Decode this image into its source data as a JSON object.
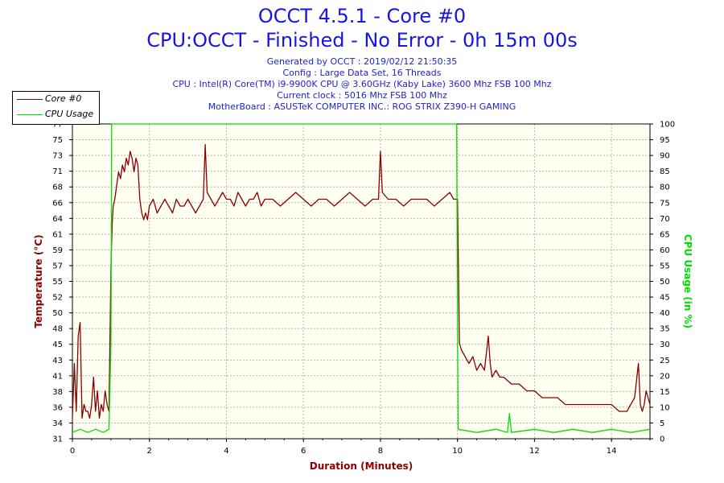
{
  "title": "OCCT 4.5.1 - Core #0",
  "subtitle": "CPU:OCCT - Finished - No Error - 0h 15m 00s",
  "info_lines": [
    "Generated by OCCT : 2019/02/12 21:50:35",
    "Config : Large Data Set, 16 Threads",
    "CPU : Intel(R) Core(TM) i9-9900K CPU @ 3.60GHz (Kaby Lake) 3600 Mhz FSB 100 Mhz",
    "Current clock : 5016 Mhz FSB 100 Mhz",
    "MotherBoard : ASUSTeK COMPUTER INC.: ROG STRIX Z390-H GAMING"
  ],
  "colors": {
    "title": "#1a14e0",
    "info": "#2323c8",
    "temperature": "#8b0000",
    "cpu_usage": "#00e000",
    "plot_background": "#fffff2",
    "grid": "#b4b4b4"
  },
  "chart_data": {
    "type": "line",
    "xlabel": "Duration (Minutes)",
    "ylabel": "Temperature (°C)",
    "y2label": "CPU Usage (in %)",
    "xlim": [
      0,
      15
    ],
    "ylim": [
      31,
      77
    ],
    "y2lim": [
      0,
      100
    ],
    "x_ticks": [
      "0",
      "2",
      "4",
      "6",
      "8",
      "10",
      "12",
      "14"
    ],
    "y_ticks": [
      "31",
      "34",
      "36",
      "38",
      "41",
      "43",
      "45",
      "48",
      "50",
      "52",
      "55",
      "57",
      "59",
      "61",
      "64",
      "66",
      "68",
      "71",
      "73",
      "75",
      "77"
    ],
    "y2_ticks": [
      "0",
      "5",
      "10",
      "15",
      "20",
      "25",
      "30",
      "35",
      "40",
      "45",
      "50",
      "55",
      "60",
      "65",
      "70",
      "75",
      "80",
      "85",
      "90",
      "95",
      "100"
    ],
    "grid": true,
    "legend": "top-left",
    "series": [
      {
        "name": "Core #0",
        "axis": "left",
        "x": [
          0,
          0.05,
          0.1,
          0.15,
          0.2,
          0.25,
          0.3,
          0.35,
          0.4,
          0.45,
          0.5,
          0.55,
          0.6,
          0.65,
          0.7,
          0.75,
          0.8,
          0.85,
          0.9,
          0.95,
          1.0,
          1.03,
          1.06,
          1.1,
          1.15,
          1.2,
          1.25,
          1.3,
          1.35,
          1.4,
          1.45,
          1.5,
          1.55,
          1.6,
          1.65,
          1.7,
          1.75,
          1.8,
          1.85,
          1.9,
          1.95,
          2.0,
          2.1,
          2.2,
          2.3,
          2.4,
          2.5,
          2.6,
          2.7,
          2.8,
          2.9,
          3.0,
          3.1,
          3.2,
          3.3,
          3.4,
          3.45,
          3.5,
          3.6,
          3.7,
          3.8,
          3.9,
          4.0,
          4.1,
          4.2,
          4.3,
          4.4,
          4.5,
          4.6,
          4.7,
          4.8,
          4.9,
          5.0,
          5.2,
          5.4,
          5.6,
          5.8,
          6.0,
          6.2,
          6.4,
          6.6,
          6.8,
          7.0,
          7.2,
          7.4,
          7.6,
          7.8,
          7.95,
          8.0,
          8.05,
          8.2,
          8.4,
          8.6,
          8.8,
          9.0,
          9.2,
          9.4,
          9.6,
          9.8,
          9.9,
          9.95,
          10.0,
          10.05,
          10.1,
          10.2,
          10.3,
          10.4,
          10.5,
          10.6,
          10.7,
          10.8,
          10.85,
          10.9,
          11.0,
          11.1,
          11.2,
          11.4,
          11.6,
          11.8,
          12.0,
          12.2,
          12.4,
          12.6,
          12.8,
          13.0,
          13.2,
          13.4,
          13.6,
          13.8,
          14.0,
          14.2,
          14.4,
          14.5,
          14.6,
          14.7,
          14.75,
          14.8,
          14.85,
          14.9,
          14.95,
          15.0
        ],
        "y": [
          34,
          42,
          35,
          46,
          48,
          34,
          36,
          35,
          35,
          34,
          36,
          40,
          35,
          38,
          34,
          36,
          35,
          38,
          36,
          35,
          56,
          62,
          65,
          66,
          68,
          70,
          69,
          71,
          70,
          72,
          71,
          73,
          72,
          70,
          72,
          71,
          66,
          64,
          63,
          64,
          63,
          65,
          66,
          64,
          65,
          66,
          65,
          64,
          66,
          65,
          65,
          66,
          65,
          64,
          65,
          66,
          74,
          67,
          66,
          65,
          66,
          67,
          66,
          66,
          65,
          67,
          66,
          65,
          66,
          66,
          67,
          65,
          66,
          66,
          65,
          66,
          67,
          66,
          65,
          66,
          66,
          65,
          66,
          67,
          66,
          65,
          66,
          66,
          73,
          67,
          66,
          66,
          65,
          66,
          66,
          66,
          65,
          66,
          67,
          66,
          66,
          66,
          45,
          44,
          43,
          42,
          43,
          41,
          42,
          41,
          46,
          42,
          40,
          41,
          40,
          40,
          39,
          39,
          38,
          38,
          37,
          37,
          37,
          36,
          36,
          36,
          36,
          36,
          36,
          36,
          35,
          35,
          36,
          37,
          42,
          36,
          35,
          36,
          38,
          37,
          36
        ]
      },
      {
        "name": "CPU Usage",
        "axis": "right",
        "x": [
          0,
          0.2,
          0.4,
          0.6,
          0.8,
          0.95,
          1.0,
          1.02,
          1.05,
          9.95,
          9.98,
          10.0,
          10.02,
          10.5,
          11.0,
          11.3,
          11.35,
          11.4,
          12.0,
          12.5,
          13.0,
          13.5,
          14.0,
          14.5,
          15.0
        ],
        "y": [
          2,
          3,
          2,
          3,
          2,
          3,
          30,
          100,
          100,
          100,
          100,
          35,
          3,
          2,
          3,
          2,
          8,
          2,
          3,
          2,
          3,
          2,
          3,
          2,
          3
        ]
      }
    ]
  }
}
